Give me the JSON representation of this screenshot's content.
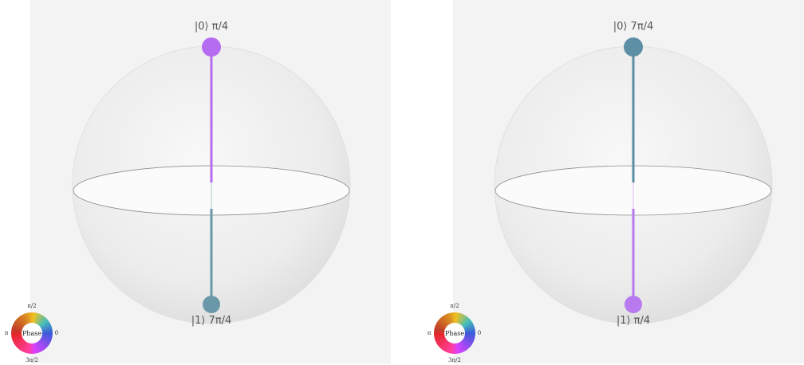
{
  "spheres": [
    {
      "zero_label": "|0⟩ π/4",
      "one_label": "|1⟩ 7π/4",
      "top_color": "#b56cf0",
      "bottom_color": "#6b98a8"
    },
    {
      "zero_label": "|0⟩ 7π/4",
      "one_label": "|1⟩ π/4",
      "top_color": "#5c8fa3",
      "bottom_color": "#b97af0"
    }
  ],
  "phase_wheel": {
    "center_label": "Phase",
    "label_top": "π/2",
    "label_left": "π",
    "label_right": "0",
    "label_bottom": "3π/2"
  }
}
